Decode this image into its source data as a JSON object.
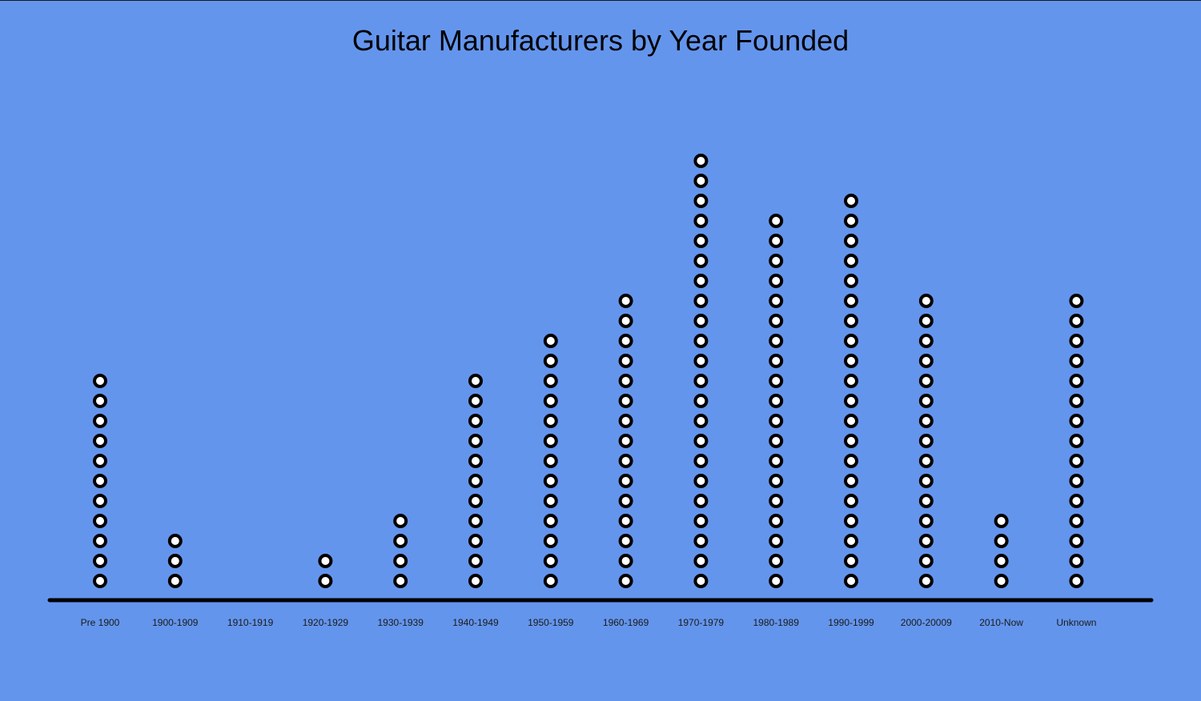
{
  "chart_data": {
    "type": "dot plot",
    "title": "Guitar Manufacturers by Year Founded",
    "categories": [
      "Pre 1900",
      "1900-1909",
      "1910-1919",
      "1920-1929",
      "1930-1939",
      "1940-1949",
      "1950-1959",
      "1960-1969",
      "1970-1979",
      "1980-1989",
      "1990-1999",
      "2000-20009",
      "2010-Now",
      "Unknown"
    ],
    "values": [
      11,
      3,
      0,
      2,
      4,
      11,
      13,
      15,
      22,
      19,
      20,
      15,
      4,
      15
    ],
    "xlabel": "",
    "ylabel": "",
    "grid": false,
    "legend": "none",
    "colors": {
      "background": "#6495ED",
      "marker_stroke": "#000000",
      "marker_fill": "#FFFFFF",
      "axis": "#000000"
    }
  }
}
